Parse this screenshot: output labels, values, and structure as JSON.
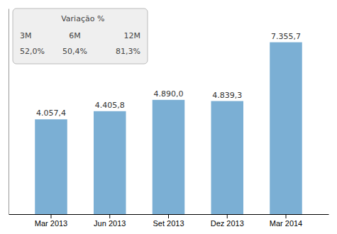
{
  "chart_data": {
    "type": "bar",
    "categories": [
      "Mar 2013",
      "Jun 2013",
      "Set 2013",
      "Dez 2013",
      "Mar 2014"
    ],
    "values": [
      4057.4,
      4405.8,
      4890.0,
      4839.3,
      7355.7
    ],
    "value_labels": [
      "4.057,4",
      "4.405,8",
      "4.890,0",
      "4.839,3",
      "7.355,7"
    ],
    "data_labels": true,
    "color": "#7BAFD4",
    "ylim": [
      0,
      8800
    ],
    "tick_labels": "x",
    "grid": false,
    "annotations": [
      {
        "title": "Variação %",
        "labels": [
          "3M",
          "6M",
          "12M"
        ],
        "values": [
          "52,0%",
          "50,4%",
          "81,3%"
        ]
      }
    ]
  }
}
